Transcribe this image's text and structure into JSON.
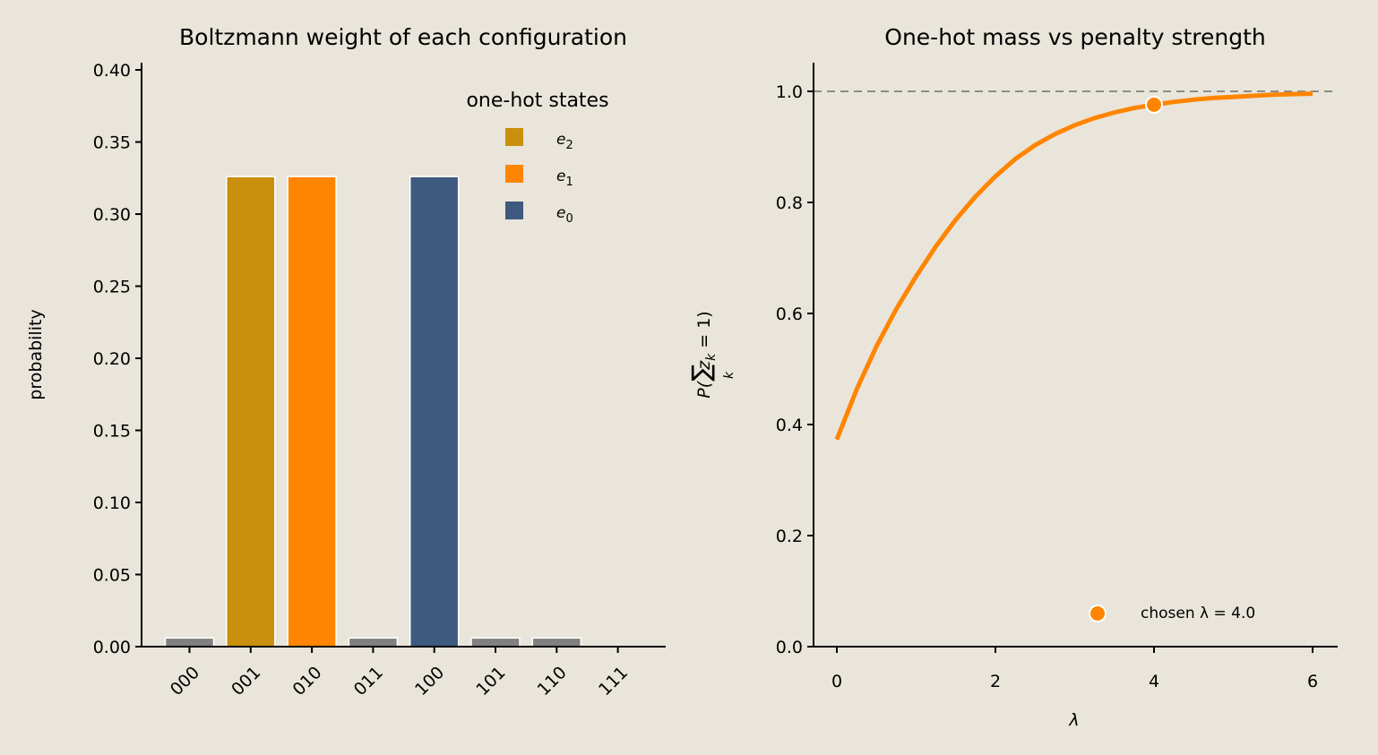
{
  "chart_data": [
    {
      "type": "bar",
      "title": "Boltzmann weight of each configuration",
      "xlabel": "",
      "ylabel": "probability",
      "categories": [
        "000",
        "001",
        "010",
        "011",
        "100",
        "101",
        "110",
        "111"
      ],
      "values": [
        0.006,
        0.326,
        0.326,
        0.006,
        0.326,
        0.006,
        0.006,
        0.0
      ],
      "colors": [
        "#808080",
        "#c8900c",
        "#ff8500",
        "#808080",
        "#3e5a7e",
        "#808080",
        "#808080",
        "#808080"
      ],
      "ylim": [
        0,
        0.405
      ],
      "yticks": [
        0.0,
        0.05,
        0.1,
        0.15,
        0.2,
        0.25,
        0.3,
        0.35,
        0.4
      ],
      "ytick_labels": [
        "0.00",
        "0.05",
        "0.10",
        "0.15",
        "0.20",
        "0.25",
        "0.30",
        "0.35",
        "0.40"
      ],
      "legend": {
        "title": "one-hot states",
        "placement": "top-right",
        "entries": [
          {
            "sym": "e",
            "sub": "2",
            "color": "#c8900c"
          },
          {
            "sym": "e",
            "sub": "1",
            "color": "#ff8500"
          },
          {
            "sym": "e",
            "sub": "0",
            "color": "#3e5a7e"
          }
        ]
      }
    },
    {
      "type": "line",
      "title": "One-hot mass vs penalty strength",
      "xlabel": "λ",
      "ylabel": {
        "pre": "P(",
        "sum": "∑",
        "sum_sub": "k",
        "var": "z",
        "var_sub": "k",
        "post": " = 1)"
      },
      "xlim": [
        -0.9,
        6.3
      ],
      "ylim": [
        0,
        1.05
      ],
      "xticks": [
        0,
        2,
        4,
        6
      ],
      "yticks": [
        0.0,
        0.2,
        0.4,
        0.6,
        0.8,
        1.0
      ],
      "ytick_labels": [
        "0.0",
        "0.2",
        "0.4",
        "0.6",
        "0.8",
        "1.0"
      ],
      "reference_line": {
        "y": 1.0,
        "color": "#8c8c8c",
        "style": "dashed"
      },
      "series": [
        {
          "color": "#ff8500",
          "x": [
            0,
            0.25,
            0.5,
            0.75,
            1.0,
            1.25,
            1.5,
            1.75,
            2.0,
            2.25,
            2.5,
            2.75,
            3.0,
            3.25,
            3.5,
            3.75,
            4.0,
            4.25,
            4.5,
            4.75,
            5.0,
            5.25,
            5.5,
            5.75,
            6.0
          ],
          "y": [
            0.373,
            0.463,
            0.541,
            0.608,
            0.667,
            0.721,
            0.769,
            0.811,
            0.847,
            0.878,
            0.903,
            0.923,
            0.939,
            0.952,
            0.962,
            0.97,
            0.976,
            0.981,
            0.985,
            0.988,
            0.99,
            0.992,
            0.994,
            0.995,
            0.996
          ]
        }
      ],
      "highlight_point": {
        "x": 4.0,
        "y": 0.976,
        "color": "#ff8500"
      },
      "legend": {
        "placement": "lower-right",
        "entries": [
          {
            "label": "chosen λ = 4.0",
            "color": "#ff8500"
          }
        ]
      }
    }
  ]
}
